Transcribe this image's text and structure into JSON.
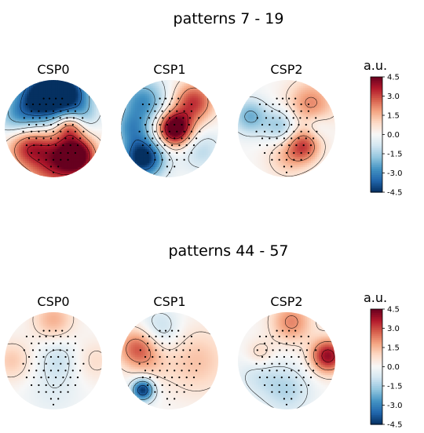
{
  "chart_data": [
    {
      "type": "heatmap",
      "title": "patterns 7 - 19",
      "colorbar": {
        "label": "a.u.",
        "ticks": [
          "4.5",
          "3.0",
          "1.5",
          "0.0",
          "-1.5",
          "-3.0",
          "-4.5"
        ],
        "range": [
          -4.5,
          4.5
        ],
        "colormap": "RdBu_r"
      },
      "panels": [
        {
          "title": "CSP0",
          "blobs": [
            {
              "x": -0.2,
              "y": 0.65,
              "v": -5.5,
              "s": 0.4
            },
            {
              "x": 0.35,
              "y": 0.75,
              "v": -3.2,
              "s": 0.3
            },
            {
              "x": -0.75,
              "y": 0.2,
              "v": -1.8,
              "s": 0.3
            },
            {
              "x": 0.6,
              "y": 0.25,
              "v": -1.5,
              "s": 0.25
            },
            {
              "x": 0.1,
              "y": -0.65,
              "v": 3.8,
              "s": 0.45
            },
            {
              "x": 0.5,
              "y": -0.55,
              "v": 3.5,
              "s": 0.25
            },
            {
              "x": -0.55,
              "y": -0.35,
              "v": 2.6,
              "s": 0.3
            },
            {
              "x": 0.35,
              "y": 0.05,
              "v": 2.6,
              "s": 0.2
            }
          ]
        },
        {
          "title": "CSP1",
          "blobs": [
            {
              "x": 0.1,
              "y": 0.0,
              "v": 5.5,
              "s": 0.25
            },
            {
              "x": 0.5,
              "y": 0.55,
              "v": 3.2,
              "s": 0.3
            },
            {
              "x": -0.55,
              "y": -0.6,
              "v": -5.0,
              "s": 0.3
            },
            {
              "x": -0.55,
              "y": 0.55,
              "v": -2.8,
              "s": 0.35
            },
            {
              "x": 0.65,
              "y": -0.45,
              "v": -1.2,
              "s": 0.3
            },
            {
              "x": -0.8,
              "y": 0.0,
              "v": -2.0,
              "s": 0.25
            }
          ]
        },
        {
          "title": "CSP2",
          "blobs": [
            {
              "x": 0.5,
              "y": 0.5,
              "v": 2.2,
              "s": 0.35
            },
            {
              "x": 0.35,
              "y": -0.35,
              "v": 2.8,
              "s": 0.25
            },
            {
              "x": 0.0,
              "y": -0.6,
              "v": 1.2,
              "s": 0.3
            },
            {
              "x": -0.75,
              "y": 0.25,
              "v": -2.2,
              "s": 0.25
            },
            {
              "x": -0.1,
              "y": 0.05,
              "v": -1.8,
              "s": 0.25
            },
            {
              "x": 0.6,
              "y": 0.05,
              "v": -1.0,
              "s": 0.2
            }
          ]
        }
      ]
    },
    {
      "type": "heatmap",
      "title": "patterns 44 - 57",
      "colorbar": {
        "label": "a.u.",
        "ticks": [
          "4.5",
          "3.0",
          "1.5",
          "0.0",
          "-1.5",
          "-3.0",
          "-4.5"
        ],
        "range": [
          -4.5,
          4.5
        ],
        "colormap": "RdBu_r"
      },
      "panels": [
        {
          "title": "CSP0",
          "blobs": [
            {
              "x": 0.0,
              "y": 0.85,
              "v": 1.6,
              "s": 0.3
            },
            {
              "x": -0.85,
              "y": 0.0,
              "v": 1.2,
              "s": 0.3
            },
            {
              "x": 0.85,
              "y": 0.0,
              "v": 0.8,
              "s": 0.3
            },
            {
              "x": 0.1,
              "y": 0.05,
              "v": -0.9,
              "s": 0.3
            },
            {
              "x": 0.0,
              "y": -0.6,
              "v": -0.5,
              "s": 0.4
            }
          ]
        },
        {
          "title": "CSP1",
          "blobs": [
            {
              "x": -0.55,
              "y": -0.6,
              "v": -4.5,
              "s": 0.16
            },
            {
              "x": -0.65,
              "y": 0.25,
              "v": 2.8,
              "s": 0.3
            },
            {
              "x": -0.2,
              "y": 0.65,
              "v": -1.3,
              "s": 0.3
            },
            {
              "x": 0.55,
              "y": 0.0,
              "v": 1.3,
              "s": 0.5
            },
            {
              "x": -0.3,
              "y": -0.1,
              "v": 0.4,
              "s": 0.25
            }
          ]
        },
        {
          "title": "CSP2",
          "blobs": [
            {
              "x": 0.85,
              "y": 0.1,
              "v": 4.0,
              "s": 0.25
            },
            {
              "x": 0.1,
              "y": 0.8,
              "v": 2.2,
              "s": 0.3
            },
            {
              "x": -0.55,
              "y": 0.15,
              "v": 1.0,
              "s": 0.2
            },
            {
              "x": 0.0,
              "y": -0.6,
              "v": -1.3,
              "s": 0.35
            },
            {
              "x": -0.6,
              "y": -0.3,
              "v": -0.8,
              "s": 0.3
            }
          ]
        }
      ]
    }
  ]
}
